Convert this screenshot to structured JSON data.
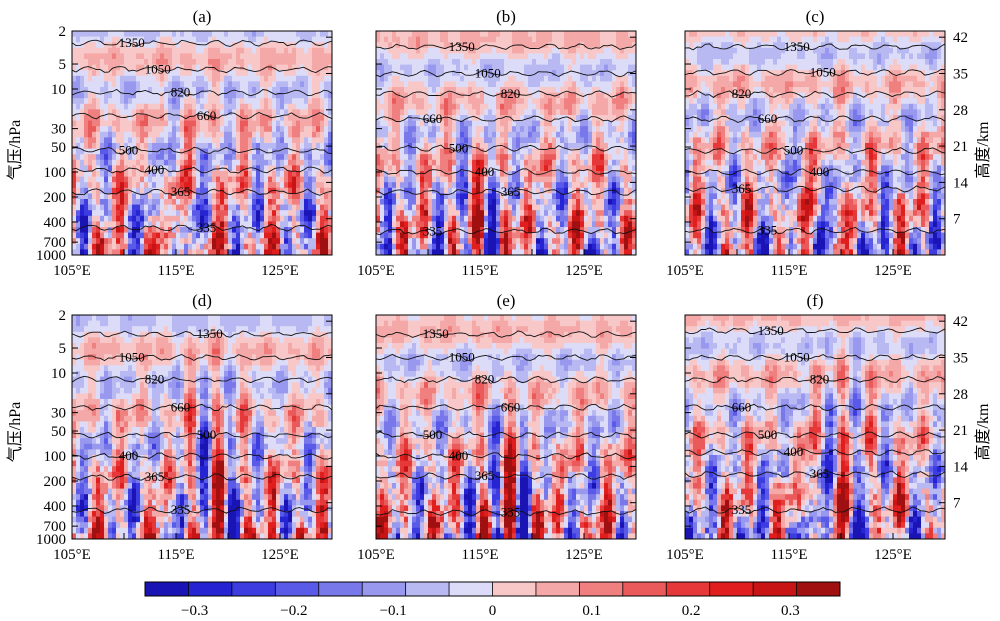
{
  "figure": {
    "left_axis_label": "气压/hPa",
    "right_axis_label": "高度/km",
    "pressure_ticks": [
      "2",
      "5",
      "10",
      "30",
      "50",
      "100",
      "200",
      "400",
      "700",
      "1000"
    ],
    "height_ticks": [
      "42",
      "35",
      "28",
      "21",
      "14",
      "7"
    ],
    "x_ticks": [
      "105°E",
      "115°E",
      "125°E"
    ]
  },
  "colorbar": {
    "ticks": [
      "-0.3",
      "-0.2",
      "-0.1",
      "0",
      "0.1",
      "0.2",
      "0.3"
    ],
    "colors": [
      "#1a14b4",
      "#2624d2",
      "#3c3ce0",
      "#5a5ae8",
      "#7878ea",
      "#9898ee",
      "#b8b8f2",
      "#dcdcf8",
      "#f8c8c8",
      "#f4a8a8",
      "#f08080",
      "#ea5a5a",
      "#e63838",
      "#e01e1e",
      "#c81414",
      "#a01010"
    ]
  },
  "chart_data": [
    {
      "type": "heatmap",
      "panel": "(a)",
      "x_range": [
        105,
        130
      ],
      "y_axis": "pressure (hPa, log)",
      "y_range": [
        1000,
        2
      ],
      "value_range": [
        -0.35,
        0.35
      ],
      "contours": [
        {
          "label": "1350",
          "p": 2.8
        },
        {
          "label": "1050",
          "p": 5.8
        },
        {
          "label": "820",
          "p": 11
        },
        {
          "label": "660",
          "p": 21
        },
        {
          "label": "500",
          "p": 55
        },
        {
          "label": "400",
          "p": 95
        },
        {
          "label": "365",
          "p": 175
        },
        {
          "label": "335",
          "p": 470
        }
      ]
    },
    {
      "type": "heatmap",
      "panel": "(b)",
      "x_range": [
        105,
        130
      ],
      "y_axis": "pressure (hPa, log)",
      "y_range": [
        1000,
        2
      ],
      "value_range": [
        -0.35,
        0.35
      ],
      "contours": [
        {
          "label": "1350",
          "p": 3.1
        },
        {
          "label": "1050",
          "p": 6.5
        },
        {
          "label": "820",
          "p": 11.5
        },
        {
          "label": "660",
          "p": 23
        },
        {
          "label": "500",
          "p": 52
        },
        {
          "label": "400",
          "p": 100
        },
        {
          "label": "365",
          "p": 175
        },
        {
          "label": "335",
          "p": 520
        }
      ]
    },
    {
      "type": "heatmap",
      "panel": "(c)",
      "x_range": [
        105,
        130
      ],
      "y_axis": "pressure (hPa, log)",
      "y_range": [
        1000,
        2
      ],
      "value_range": [
        -0.35,
        0.35
      ],
      "contours": [
        {
          "label": "1350",
          "p": 3.1
        },
        {
          "label": "1050",
          "p": 6.3
        },
        {
          "label": "820",
          "p": 11.5
        },
        {
          "label": "660",
          "p": 23
        },
        {
          "label": "500",
          "p": 55
        },
        {
          "label": "400",
          "p": 100
        },
        {
          "label": "365",
          "p": 160
        },
        {
          "label": "335",
          "p": 510
        }
      ]
    },
    {
      "type": "heatmap",
      "panel": "(d)",
      "x_range": [
        105,
        130
      ],
      "y_axis": "pressure (hPa, log)",
      "y_range": [
        1000,
        2
      ],
      "value_range": [
        -0.35,
        0.35
      ],
      "contours": [
        {
          "label": "1350",
          "p": 3.4
        },
        {
          "label": "1050",
          "p": 6.5
        },
        {
          "label": "820",
          "p": 12
        },
        {
          "label": "660",
          "p": 26
        },
        {
          "label": "500",
          "p": 56
        },
        {
          "label": "400",
          "p": 100
        },
        {
          "label": "365",
          "p": 180
        },
        {
          "label": "335",
          "p": 450
        }
      ]
    },
    {
      "type": "heatmap",
      "panel": "(e)",
      "x_range": [
        105,
        130
      ],
      "y_axis": "pressure (hPa, log)",
      "y_range": [
        1000,
        2
      ],
      "value_range": [
        -0.35,
        0.35
      ],
      "contours": [
        {
          "label": "1350",
          "p": 3.4
        },
        {
          "label": "1050",
          "p": 6.5
        },
        {
          "label": "820",
          "p": 12
        },
        {
          "label": "660",
          "p": 26
        },
        {
          "label": "500",
          "p": 56
        },
        {
          "label": "400",
          "p": 100
        },
        {
          "label": "365",
          "p": 175
        },
        {
          "label": "335",
          "p": 480
        }
      ]
    },
    {
      "type": "heatmap",
      "panel": "(f)",
      "x_range": [
        105,
        130
      ],
      "y_axis": "pressure (hPa, log)",
      "y_range": [
        1000,
        2
      ],
      "value_range": [
        -0.35,
        0.35
      ],
      "contours": [
        {
          "label": "1350",
          "p": 3.1
        },
        {
          "label": "1050",
          "p": 6.5
        },
        {
          "label": "820",
          "p": 12
        },
        {
          "label": "660",
          "p": 26
        },
        {
          "label": "500",
          "p": 56
        },
        {
          "label": "400",
          "p": 90
        },
        {
          "label": "365",
          "p": 165
        },
        {
          "label": "335",
          "p": 450
        }
      ]
    }
  ]
}
